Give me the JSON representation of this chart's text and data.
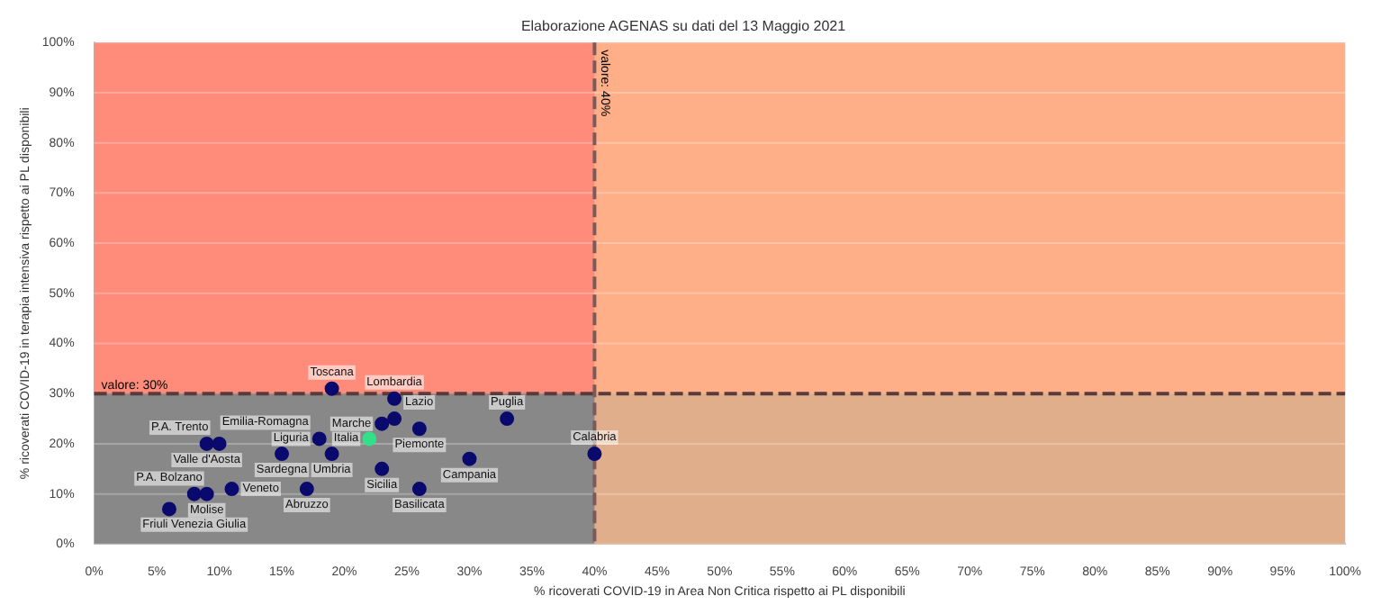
{
  "chart_data": {
    "type": "scatter",
    "title": "Elaborazione AGENAS su dati del 13 Maggio 2021",
    "xlabel": "% ricoverati COVID-19 in Area Non Critica rispetto ai PL disponibili",
    "ylabel": "% ricoverati COVID-19 in terapia intensiva rispetto ai PL disponibili",
    "series": [
      {
        "color": "#0a0a6e",
        "x": [
          19,
          24,
          24,
          23,
          26,
          33,
          18,
          19,
          15,
          23,
          30,
          40,
          26,
          17,
          9,
          10,
          8,
          9,
          11,
          6
        ],
        "values": [
          31,
          29,
          25,
          24,
          23,
          25,
          21,
          18,
          18,
          15,
          17,
          18,
          11,
          11,
          20,
          20,
          10,
          10,
          11,
          7
        ]
      },
      {
        "color": "#33e08a",
        "x": [
          22
        ],
        "values": [
          21
        ]
      }
    ],
    "annotations": [
      {
        "text": "Toscana",
        "x": 19,
        "y": 31
      },
      {
        "text": "Lombardia",
        "x": 24,
        "y": 29
      },
      {
        "text": "Lazio",
        "x": 24,
        "y": 25
      },
      {
        "text": "Marche",
        "x": 23,
        "y": 24
      },
      {
        "text": "Piemonte",
        "x": 26,
        "y": 23
      },
      {
        "text": "Puglia",
        "x": 33,
        "y": 25
      },
      {
        "text": "Emilia-Romagna",
        "x": 18,
        "y": 21
      },
      {
        "text": "Liguria",
        "x": 18,
        "y": 21
      },
      {
        "text": "Umbria",
        "x": 19,
        "y": 18
      },
      {
        "text": "Sardegna",
        "x": 15,
        "y": 18
      },
      {
        "text": "Sicilia",
        "x": 23,
        "y": 15
      },
      {
        "text": "Campania",
        "x": 30,
        "y": 17
      },
      {
        "text": "Calabria",
        "x": 40,
        "y": 18
      },
      {
        "text": "Basilicata",
        "x": 26,
        "y": 11
      },
      {
        "text": "Abruzzo",
        "x": 17,
        "y": 11
      },
      {
        "text": "Valle d'Aosta",
        "x": 9,
        "y": 20
      },
      {
        "text": "P.A. Trento",
        "x": 10,
        "y": 20
      },
      {
        "text": "Friuli Venezia Giulia",
        "x": 8,
        "y": 10
      },
      {
        "text": "Molise",
        "x": 9,
        "y": 10
      },
      {
        "text": "Veneto",
        "x": 11,
        "y": 11
      },
      {
        "text": "P.A. Bolzano",
        "x": 6,
        "y": 7
      },
      {
        "text": "Italia",
        "x": 22,
        "y": 21
      }
    ],
    "ref_lines": [
      {
        "axis": "x",
        "value": 40,
        "label": "valore: 40%",
        "color": "#7a5a5a",
        "line_style": "dashed"
      },
      {
        "axis": "y",
        "value": 30,
        "label": "valore: 30%",
        "color": "#5a3a3a",
        "line_style": "dashed"
      }
    ],
    "bands": [
      {
        "axis": "y",
        "from": 30,
        "to": 100,
        "color": "#ff8c7a"
      },
      {
        "axis": "x",
        "from": 40,
        "to": 100,
        "color": "#ffbb8c"
      }
    ],
    "xlim": [
      0,
      100
    ],
    "ylim": [
      0,
      100
    ],
    "xticks": [
      {
        "value": 0,
        "label": "0%"
      },
      {
        "value": 5,
        "label": "5%"
      },
      {
        "value": 10,
        "label": "10%"
      },
      {
        "value": 15,
        "label": "15%"
      },
      {
        "value": 20,
        "label": "20%"
      },
      {
        "value": 25,
        "label": "25%"
      },
      {
        "value": 30,
        "label": "30%"
      },
      {
        "value": 35,
        "label": "35%"
      },
      {
        "value": 40,
        "label": "40%"
      },
      {
        "value": 45,
        "label": "45%"
      },
      {
        "value": 50,
        "label": "50%"
      },
      {
        "value": 55,
        "label": "55%"
      },
      {
        "value": 60,
        "label": "60%"
      },
      {
        "value": 65,
        "label": "65%"
      },
      {
        "value": 70,
        "label": "70%"
      },
      {
        "value": 75,
        "label": "75%"
      },
      {
        "value": 80,
        "label": "80%"
      },
      {
        "value": 85,
        "label": "85%"
      },
      {
        "value": 90,
        "label": "90%"
      },
      {
        "value": 95,
        "label": "95%"
      },
      {
        "value": 100,
        "label": "100%"
      }
    ],
    "yticks": [
      {
        "value": 0,
        "label": "0%"
      },
      {
        "value": 10,
        "label": "10%"
      },
      {
        "value": 20,
        "label": "20%"
      },
      {
        "value": 30,
        "label": "30%"
      },
      {
        "value": 40,
        "label": "40%"
      },
      {
        "value": 50,
        "label": "50%"
      },
      {
        "value": 60,
        "label": "60%"
      },
      {
        "value": 70,
        "label": "70%"
      },
      {
        "value": 80,
        "label": "80%"
      },
      {
        "value": 90,
        "label": "90%"
      },
      {
        "value": 100,
        "label": "100%"
      }
    ],
    "grid": "y",
    "legend": false,
    "marker": "circle"
  }
}
